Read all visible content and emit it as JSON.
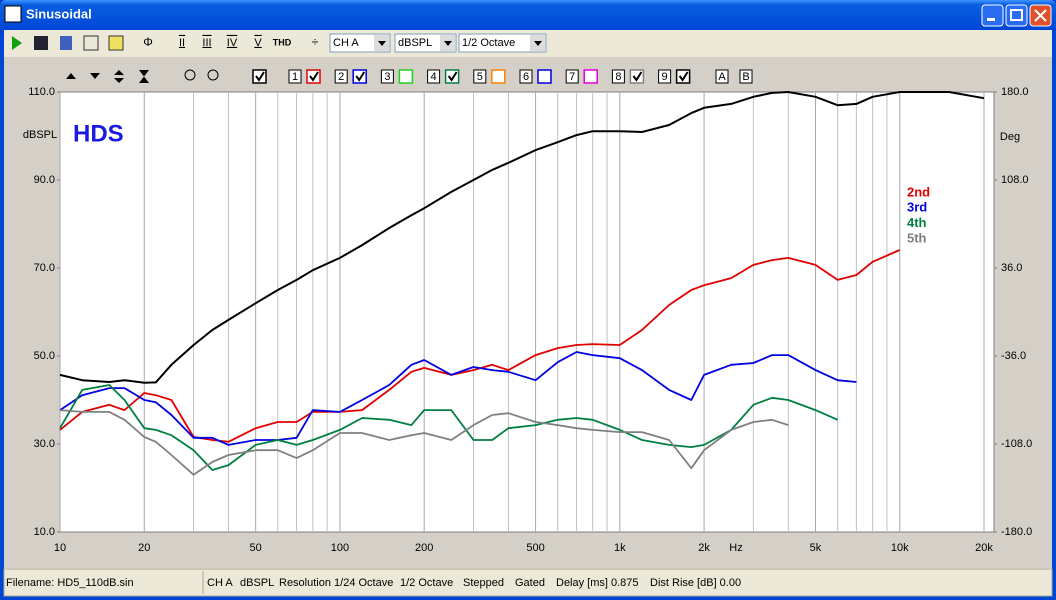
{
  "window": {
    "title": "Sinusoidal"
  },
  "toolbar": {
    "buttons": [
      "II",
      "III",
      "IV",
      "V",
      "THD"
    ],
    "dropdowns": [
      "CH A",
      "dBSPL",
      "1/2 Octave"
    ]
  },
  "chart_toolbar": {
    "channels": [
      "1",
      "2",
      "3",
      "4",
      "5",
      "6",
      "7",
      "8",
      "9"
    ],
    "markers": [
      "A",
      "B"
    ]
  },
  "chart_data": {
    "type": "line",
    "annotation": "HDS",
    "ylabel": "dBSPL",
    "y2label": "Deg",
    "xlabel": "Hz",
    "xscale": "log",
    "xlim": [
      10,
      20000
    ],
    "xticks": [
      10,
      20,
      50,
      100,
      200,
      500,
      {
        "value": 1000,
        "label": "1k"
      },
      {
        "value": 2000,
        "label": "2k"
      },
      {
        "value": 5000,
        "label": "5k"
      },
      {
        "value": 10000,
        "label": "10k"
      },
      {
        "value": 20000,
        "label": "20k"
      }
    ],
    "xminor": [
      30,
      40,
      60,
      70,
      80,
      90,
      300,
      400,
      600,
      700,
      800,
      900,
      3000,
      4000,
      6000,
      7000,
      8000,
      9000
    ],
    "ylim": [
      10,
      110
    ],
    "yticks": [
      {
        "value": 10,
        "label": "10.0"
      },
      {
        "value": 30,
        "label": "30.0"
      },
      {
        "value": 50,
        "label": "50.0"
      },
      {
        "value": 70,
        "label": "70.0"
      },
      {
        "value": 90,
        "label": "90.0"
      },
      {
        "value": 110,
        "label": "110.0"
      }
    ],
    "y2lim": [
      -180,
      180
    ],
    "y2ticks": [
      {
        "value": -180,
        "label": "-180.0"
      },
      {
        "value": -108,
        "label": "-108.0"
      },
      {
        "value": -36,
        "label": "-36.0"
      },
      {
        "value": 36,
        "label": "36.0"
      },
      {
        "value": 108,
        "label": "108.0"
      },
      {
        "value": 180,
        "label": "180.0"
      }
    ],
    "grid": "x",
    "x": [
      10,
      12,
      15,
      17,
      20,
      22,
      25,
      30,
      35,
      40,
      50,
      60,
      70,
      80,
      100,
      120,
      150,
      180,
      200,
      250,
      300,
      350,
      400,
      500,
      600,
      700,
      800,
      1000,
      1200,
      1500,
      1800,
      2000,
      2500,
      3000,
      3500,
      4000,
      5000,
      6000,
      7000,
      8000,
      10000,
      12000,
      15000,
      20000
    ],
    "series": [
      {
        "color": "#000000",
        "values": [
          45.7,
          44.5,
          44.1,
          44.5,
          43.9,
          44,
          48,
          52.5,
          55.9,
          58.2,
          62,
          65,
          67.3,
          69.5,
          72.3,
          75.2,
          79.1,
          82,
          83.6,
          87.3,
          90,
          92.3,
          93.9,
          96.8,
          98.6,
          100.2,
          101.1,
          101.1,
          100.9,
          102.5,
          105.2,
          106.4,
          107.3,
          108.9,
          109.8,
          110,
          108.9,
          107,
          107.3,
          108.9,
          110,
          110,
          110,
          108.6
        ]
      },
      {
        "name": "2nd",
        "color": "#e00000",
        "values": [
          33.2,
          37.3,
          38.9,
          37.7,
          41.6,
          41.1,
          40,
          31.6,
          30.9,
          30.5,
          33.6,
          35,
          35,
          37.3,
          37.3,
          37.7,
          42.3,
          46.4,
          47.3,
          45.7,
          46.8,
          48,
          46.8,
          50.2,
          51.8,
          52.5,
          52.7,
          52.5,
          55.9,
          61.6,
          65,
          66.1,
          67.7,
          70.7,
          71.8,
          72.3,
          70.7,
          67.3,
          68.4,
          71.4,
          74.1,
          null,
          null,
          null
        ]
      },
      {
        "name": "3rd",
        "color": "#0000e0",
        "values": [
          37.7,
          41.1,
          42.7,
          42.7,
          40,
          39.5,
          36.6,
          31.4,
          31.4,
          29.8,
          30.9,
          30.9,
          31.4,
          37.7,
          37.3,
          40,
          43.4,
          48,
          49.1,
          45.7,
          47.5,
          46.8,
          46.4,
          44.5,
          48.6,
          50.9,
          50.2,
          49.5,
          46.8,
          42.3,
          40,
          45.7,
          48,
          48.4,
          50.2,
          50.2,
          46.8,
          44.5,
          44.1,
          null,
          null,
          null,
          null,
          null
        ]
      },
      {
        "name": "4th",
        "color": "#008040",
        "values": [
          33.6,
          42.3,
          43.4,
          40,
          33.6,
          33.2,
          32,
          28.6,
          24.1,
          25.2,
          29.8,
          30.9,
          29.8,
          30.9,
          33.2,
          35.9,
          35.5,
          34.3,
          37.7,
          37.7,
          30.9,
          30.9,
          33.6,
          34.3,
          35.5,
          35.9,
          35.5,
          33.2,
          30.9,
          29.8,
          29.3,
          29.8,
          33.2,
          38.9,
          40.5,
          40,
          37.7,
          35.5,
          null,
          null,
          null,
          null,
          null,
          null
        ]
      },
      {
        "name": "5th",
        "color": "#808080",
        "values": [
          37.7,
          37.3,
          37.3,
          35.5,
          31.6,
          30.5,
          27.5,
          23,
          25.9,
          27.5,
          28.6,
          28.6,
          26.8,
          28.6,
          32.5,
          32.5,
          30.9,
          32,
          32.5,
          30.9,
          34.3,
          36.6,
          37,
          35,
          34.3,
          33.6,
          33.2,
          32.7,
          32.7,
          30.9,
          24.5,
          28.6,
          33.2,
          35,
          35.5,
          34.3,
          null,
          null,
          null,
          null,
          null,
          null,
          null,
          null
        ]
      }
    ]
  },
  "status_bar": {
    "items": [
      "Filename: HD5_110dB.sin",
      "CH A",
      "dBSPL",
      "Resolution 1/24 Octave",
      "1/2 Octave",
      "Stepped",
      "Gated",
      "Delay [ms] 0.875",
      "Dist Rise [dB] 0.00"
    ]
  }
}
